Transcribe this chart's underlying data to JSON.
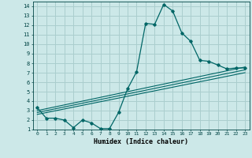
{
  "xlabel": "Humidex (Indice chaleur)",
  "xlim": [
    -0.5,
    23.5
  ],
  "ylim": [
    1,
    14.5
  ],
  "xticks": [
    0,
    1,
    2,
    3,
    4,
    5,
    6,
    7,
    8,
    9,
    10,
    11,
    12,
    13,
    14,
    15,
    16,
    17,
    18,
    19,
    20,
    21,
    22,
    23
  ],
  "yticks": [
    1,
    2,
    3,
    4,
    5,
    6,
    7,
    8,
    9,
    10,
    11,
    12,
    13,
    14
  ],
  "bg_color": "#cce8e8",
  "grid_color": "#aacece",
  "line_color": "#006666",
  "main_line_x": [
    0,
    1,
    2,
    3,
    4,
    5,
    6,
    7,
    8,
    9,
    10,
    11,
    12,
    13,
    14,
    15,
    16,
    17,
    18,
    19,
    20,
    21,
    22,
    23
  ],
  "main_line_y": [
    3.3,
    2.2,
    2.2,
    2.0,
    1.2,
    2.0,
    1.7,
    1.1,
    1.1,
    2.8,
    5.3,
    7.1,
    12.2,
    12.1,
    14.2,
    13.5,
    11.2,
    10.3,
    8.3,
    8.2,
    7.8,
    7.4,
    7.5,
    7.5
  ],
  "line2_x": [
    0,
    23
  ],
  "line2_y": [
    3.0,
    7.6
  ],
  "line3_x": [
    0,
    23
  ],
  "line3_y": [
    2.8,
    7.3
  ],
  "line4_x": [
    0,
    23
  ],
  "line4_y": [
    2.6,
    7.0
  ]
}
